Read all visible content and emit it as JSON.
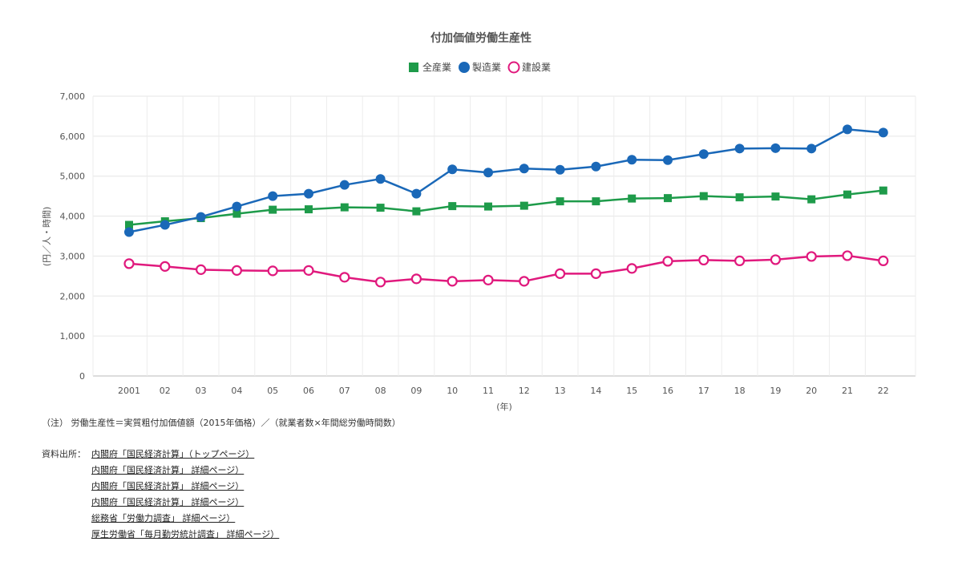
{
  "chart_data": {
    "type": "line",
    "title": "付加価値労働生産性",
    "xlabel": "(年)",
    "ylabel": "(円／人・時間)",
    "categories": [
      "2001",
      "02",
      "03",
      "04",
      "05",
      "06",
      "07",
      "08",
      "09",
      "10",
      "11",
      "12",
      "13",
      "14",
      "15",
      "16",
      "17",
      "18",
      "19",
      "20",
      "21",
      "22"
    ],
    "ylim": [
      0,
      7000
    ],
    "yticks": [
      0,
      1000,
      2000,
      3000,
      4000,
      5000,
      6000,
      7000
    ],
    "ytick_labels": [
      "0",
      "1,000",
      "2,000",
      "3,000",
      "4,000",
      "5,000",
      "6,000",
      "7,000"
    ],
    "grid": true,
    "legend_position": "top-center",
    "series": [
      {
        "name": "全産業",
        "marker": "square",
        "color": "#1e9b4a",
        "values": [
          3780,
          3870,
          3950,
          4060,
          4160,
          4170,
          4220,
          4210,
          4120,
          4250,
          4240,
          4260,
          4370,
          4370,
          4440,
          4450,
          4500,
          4470,
          4490,
          4420,
          4540,
          4640
        ]
      },
      {
        "name": "製造業",
        "marker": "circle",
        "color": "#1a68b8",
        "values": [
          3600,
          3780,
          3980,
          4240,
          4500,
          4560,
          4780,
          4930,
          4560,
          5170,
          5090,
          5190,
          5160,
          5240,
          5410,
          5400,
          5550,
          5690,
          5700,
          5690,
          6170,
          6090
        ]
      },
      {
        "name": "建設業",
        "marker": "hollow-circle",
        "color": "#e0197d",
        "values": [
          2810,
          2740,
          2660,
          2640,
          2630,
          2640,
          2470,
          2350,
          2430,
          2370,
          2400,
          2370,
          2560,
          2560,
          2690,
          2870,
          2900,
          2880,
          2910,
          2990,
          3010,
          2880
        ]
      }
    ]
  },
  "notes": {
    "line1": "（注） 労働生産性＝実質粗付加価値額（2015年価格）／（就業者数×年間総労働時間数）"
  },
  "sources": {
    "prefix": "資料出所：",
    "links": [
      "内閣府「国民経済計算」（トップページ）",
      "内閣府「国民経済計算」 詳細ページ）",
      "内閣府「国民経済計算」 詳細ページ）",
      "内閣府「国民経済計算」 詳細ページ）",
      "総務省「労働力調査」 詳細ページ）",
      "厚生労働省「毎月勤労統計調査」 詳細ページ）"
    ]
  }
}
